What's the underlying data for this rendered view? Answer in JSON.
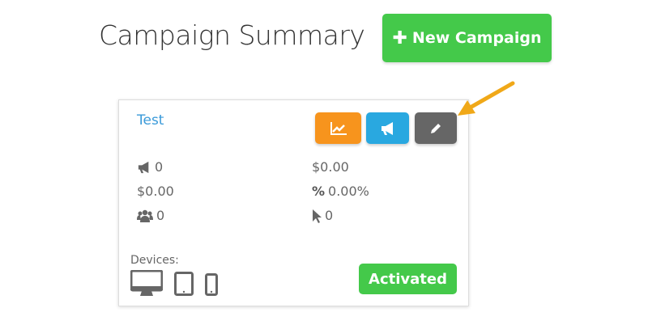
{
  "header": {
    "title": "Campaign Summary",
    "new_campaign_label": "New Campaign"
  },
  "card": {
    "name": "Test",
    "actions": [
      {
        "icon": "line-chart-icon",
        "color": "#f7941d"
      },
      {
        "icon": "bullhorn-icon",
        "color": "#29a8e0"
      },
      {
        "icon": "pencil-icon",
        "color": "#666666"
      }
    ],
    "stats": {
      "campaigns": "0",
      "spend": "$0.00",
      "cost": "$0.00",
      "rate": "0.00%",
      "users": "0",
      "clicks": "0"
    },
    "devices_label": "Devices:",
    "devices": [
      "desktop-icon",
      "tablet-icon",
      "mobile-icon"
    ],
    "status": "Activated"
  },
  "colors": {
    "green": "#44c94a",
    "link": "#3a9ad9",
    "arrow": "#f0a818"
  }
}
